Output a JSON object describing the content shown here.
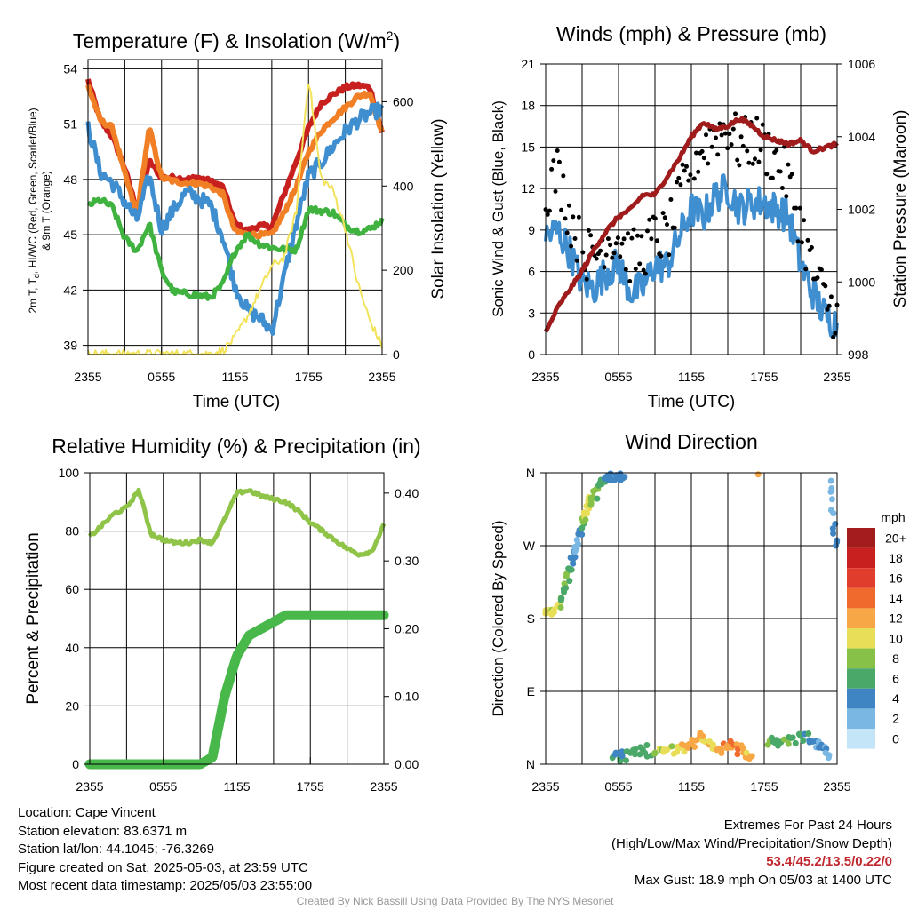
{
  "chart_data": [
    {
      "type": "line",
      "title_text": "Temperature (F) & Insolation (W/m",
      "title_sup": "2",
      "title_end": ")",
      "xlabel": "Time (UTC)",
      "ylabel_left_1": "2m T, T",
      "ylabel_left_sub": "d",
      "ylabel_left_2": ", HI/WC (Red, Green, Scarlet/Blue)",
      "ylabel_left_3": "& 9m T (Orange)",
      "ylabel_right": "Solar Insolation (Yellow)",
      "xticks": [
        "2355",
        "0555",
        "1155",
        "1755",
        "2355"
      ],
      "ylim_left": [
        38.5,
        54.5
      ],
      "yticks_left": [
        "54",
        "51",
        "48",
        "45",
        "42",
        "39"
      ],
      "ylim_right": [
        0,
        700
      ],
      "yticks_right": [
        "0",
        "200",
        "400",
        "600"
      ],
      "x_hours": [
        0,
        1,
        2,
        3,
        4,
        5,
        6,
        7,
        8,
        9,
        10,
        11,
        12,
        13,
        14,
        15,
        16,
        17,
        18,
        19,
        20,
        21,
        22,
        23,
        24
      ],
      "series": [
        {
          "color": "#c8201f",
          "axis": "left",
          "values": [
            53.4,
            51.2,
            50.3,
            48.6,
            46.3,
            49.0,
            48.1,
            48.1,
            48.0,
            48.1,
            47.9,
            47.6,
            45.6,
            45.2,
            45.5,
            45.4,
            47.2,
            49.0,
            50.8,
            52.1,
            52.6,
            53.0,
            53.1,
            53.0,
            50.5
          ]
        },
        {
          "color": "#f07f25",
          "axis": "left",
          "values": [
            53.1,
            51.2,
            50.8,
            48.3,
            46.1,
            50.8,
            48.1,
            47.9,
            47.8,
            47.8,
            47.6,
            47.2,
            45.2,
            45.0,
            45.0,
            45.0,
            46.2,
            47.6,
            49.5,
            50.6,
            51.3,
            51.9,
            52.5,
            52.7,
            50.5
          ]
        },
        {
          "color": "#3f8fd0",
          "axis": "left",
          "values": [
            50.9,
            48.4,
            47.8,
            46.8,
            45.8,
            48.2,
            45.3,
            46.4,
            47.3,
            47.0,
            46.6,
            44.9,
            42.2,
            40.9,
            40.5,
            39.8,
            42.7,
            45.6,
            48.2,
            48.9,
            49.8,
            50.6,
            51.2,
            51.6,
            51.8
          ]
        },
        {
          "color": "#3fb23f",
          "axis": "left",
          "values": [
            46.6,
            46.9,
            46.5,
            44.8,
            44.1,
            45.6,
            43.0,
            41.9,
            41.8,
            41.7,
            41.6,
            42.3,
            44.1,
            45.0,
            44.5,
            44.3,
            44.2,
            44.2,
            46.4,
            46.3,
            46.2,
            45.5,
            45.2,
            45.3,
            45.8
          ]
        },
        {
          "color": "#f2e35b",
          "axis": "right",
          "values": [
            2,
            2,
            2,
            2,
            2,
            2,
            2,
            2,
            2,
            2,
            2,
            10,
            40,
            90,
            150,
            210,
            230,
            340,
            660,
            420,
            390,
            300,
            170,
            80,
            20
          ]
        }
      ]
    },
    {
      "type": "scatter",
      "title": "Winds (mph) & Pressure (mb)",
      "xlabel": "Time (UTC)",
      "ylabel_left": "Sonic Wind & Gust (Blue, Black)",
      "ylabel_right": "Station Pressure (Maroon)",
      "xticks": [
        "2355",
        "0555",
        "1155",
        "1755",
        "2355"
      ],
      "ylim_left": [
        0,
        21
      ],
      "yticks_left": [
        "0",
        "3",
        "6",
        "9",
        "12",
        "15",
        "18",
        "21"
      ],
      "ylim_right": [
        998,
        1006
      ],
      "yticks_right": [
        "998",
        "1000",
        "1002",
        "1004",
        "1006"
      ],
      "x_hours": [
        0,
        1,
        2,
        3,
        4,
        5,
        6,
        7,
        8,
        9,
        10,
        11,
        12,
        13,
        14,
        15,
        16,
        17,
        18,
        19,
        20,
        21,
        22,
        23,
        24
      ],
      "series": [
        {
          "color": "#3f8fd0",
          "axis": "left",
          "values": [
            8.5,
            9.0,
            7.4,
            5.2,
            4.8,
            6.0,
            6.5,
            4.5,
            4.8,
            6.5,
            6.4,
            8.5,
            10.5,
            10.0,
            11.5,
            12.0,
            10.5,
            11.0,
            11.0,
            10.5,
            10.0,
            6.5,
            4.5,
            2.8,
            2.2
          ]
        },
        {
          "color": "#000000",
          "axis": "left",
          "values": [
            11.8,
            13.2,
            10.0,
            7.5,
            7.0,
            8.5,
            8.5,
            7.0,
            7.5,
            8.5,
            8.5,
            11.0,
            14.0,
            15.0,
            16.0,
            16.5,
            15.0,
            15.5,
            15.0,
            14.0,
            12.5,
            9.5,
            6.0,
            4.0,
            2.8
          ]
        },
        {
          "color": "#a01c1c",
          "axis": "right",
          "values": [
            998.6,
            999.3,
            999.8,
            1000.3,
            1000.9,
            1001.4,
            1001.8,
            1002.0,
            1002.4,
            1002.4,
            1002.9,
            1003.4,
            1004.0,
            1004.4,
            1004.2,
            1004.3,
            1004.5,
            1004.3,
            1004.0,
            1003.9,
            1003.8,
            1003.9,
            1003.6,
            1003.7,
            1003.8
          ]
        }
      ]
    },
    {
      "type": "line",
      "title": "Relative Humidity (%) & Precipitation (in)",
      "ylabel_left": "Percent & Precipitation",
      "xticks": [
        "2355",
        "0555",
        "1155",
        "1755",
        "2355"
      ],
      "ylim_left": [
        0,
        100
      ],
      "yticks_left": [
        "0",
        "20",
        "40",
        "60",
        "80",
        "100"
      ],
      "ylim_right": [
        0,
        0.43
      ],
      "yticks_right": [
        "0.00",
        "0.10",
        "0.20",
        "0.30",
        "0.40"
      ],
      "x_hours": [
        0,
        1,
        2,
        3,
        4,
        5,
        6,
        7,
        8,
        9,
        10,
        11,
        12,
        13,
        14,
        15,
        16,
        17,
        18,
        19,
        20,
        21,
        22,
        23,
        24
      ],
      "series": [
        {
          "color": "#8fc449",
          "axis": "left",
          "values": [
            78,
            82,
            86,
            88,
            94,
            79,
            77,
            76,
            76,
            77,
            76,
            84,
            93,
            94,
            92,
            91,
            90,
            87,
            83,
            80,
            77,
            74,
            72,
            73,
            82
          ]
        },
        {
          "color": "#49b84a",
          "axis": "right",
          "values": [
            0,
            0,
            0,
            0,
            0,
            0,
            0,
            0,
            0,
            0,
            0.01,
            0.1,
            0.16,
            0.19,
            0.2,
            0.21,
            0.22,
            0.22,
            0.22,
            0.22,
            0.22,
            0.22,
            0.22,
            0.22,
            0.22
          ]
        }
      ]
    },
    {
      "type": "scatter",
      "title": "Wind Direction",
      "ylabel_left": "Direction (Colored By Speed)",
      "xticks": [
        "2355",
        "0555",
        "1155",
        "1755",
        "2355"
      ],
      "ylim_left": [
        0,
        360
      ],
      "yticks_left": [
        "N",
        "E",
        "S",
        "W",
        "N"
      ],
      "colorbar_title": "mph",
      "colorbar_labels": [
        "20+",
        "18",
        "16",
        "14",
        "12",
        "10",
        "8",
        "6",
        "4",
        "2",
        "0"
      ],
      "colorbar_colors": [
        "#a31d1d",
        "#c8201f",
        "#e03d2c",
        "#ef6a2c",
        "#f7a745",
        "#e9de58",
        "#88c148",
        "#4aa868",
        "#3f85c4",
        "#7ab7e3",
        "#c4e4f7"
      ],
      "points": [
        {
          "x": 0.0,
          "y": 190,
          "s": 10
        },
        {
          "x": 0.5,
          "y": 185,
          "s": 9
        },
        {
          "x": 1.0,
          "y": 195,
          "s": 10
        },
        {
          "x": 1.3,
          "y": 205,
          "s": 6
        },
        {
          "x": 1.6,
          "y": 220,
          "s": 7
        },
        {
          "x": 2.0,
          "y": 240,
          "s": 6
        },
        {
          "x": 2.3,
          "y": 255,
          "s": 4
        },
        {
          "x": 2.6,
          "y": 270,
          "s": 2
        },
        {
          "x": 2.9,
          "y": 285,
          "s": 4
        },
        {
          "x": 3.2,
          "y": 305,
          "s": 9
        },
        {
          "x": 3.5,
          "y": 325,
          "s": 10
        },
        {
          "x": 3.9,
          "y": 330,
          "s": 8
        },
        {
          "x": 4.3,
          "y": 340,
          "s": 7
        },
        {
          "x": 4.8,
          "y": 350,
          "s": 5
        },
        {
          "x": 5.3,
          "y": 355,
          "s": 4
        },
        {
          "x": 5.8,
          "y": 357,
          "s": 4
        },
        {
          "x": 6.5,
          "y": 355,
          "s": 4
        },
        {
          "x": 5.5,
          "y": 8,
          "s": 5
        },
        {
          "x": 6.3,
          "y": 10,
          "s": 4
        },
        {
          "x": 7.0,
          "y": 14,
          "s": 6
        },
        {
          "x": 8.0,
          "y": 18,
          "s": 6
        },
        {
          "x": 9.0,
          "y": 14,
          "s": 8
        },
        {
          "x": 10.0,
          "y": 18,
          "s": 9
        },
        {
          "x": 11.0,
          "y": 20,
          "s": 10
        },
        {
          "x": 12.0,
          "y": 25,
          "s": 12
        },
        {
          "x": 12.7,
          "y": 35,
          "s": 12
        },
        {
          "x": 13.5,
          "y": 28,
          "s": 10
        },
        {
          "x": 14.5,
          "y": 18,
          "s": 12
        },
        {
          "x": 15.5,
          "y": 24,
          "s": 14
        },
        {
          "x": 16.3,
          "y": 14,
          "s": 12
        },
        {
          "x": 17.0,
          "y": 10,
          "s": 11
        },
        {
          "x": 17.5,
          "y": 358,
          "s": 12
        },
        {
          "x": 18.3,
          "y": 24,
          "s": 8
        },
        {
          "x": 19.0,
          "y": 30,
          "s": 6
        },
        {
          "x": 20.0,
          "y": 25,
          "s": 7
        },
        {
          "x": 21.0,
          "y": 35,
          "s": 6
        },
        {
          "x": 22.0,
          "y": 28,
          "s": 4
        },
        {
          "x": 22.8,
          "y": 20,
          "s": 3
        },
        {
          "x": 23.3,
          "y": 8,
          "s": 2
        },
        {
          "x": 23.5,
          "y": 350,
          "s": 2
        },
        {
          "x": 23.7,
          "y": 310,
          "s": 2
        },
        {
          "x": 23.9,
          "y": 270,
          "s": 4
        }
      ]
    }
  ],
  "footer": {
    "location": "Location: Cape Vincent",
    "elevation": "Station elevation: 83.6371 m",
    "latlon": "Station lat/lon: 44.1045; -76.3269",
    "created": "Figure created on Sat, 2025-05-03, at 23:59 UTC",
    "recent": "Most recent data timestamp: 2025/05/03 23:55:00",
    "extremes_title": "Extremes For Past 24 Hours",
    "extremes_sub": "(High/Low/Max Wind/Precipitation/Snow Depth)",
    "extremes_values": "53.4/45.2/13.5/0.22/0",
    "max_gust": "Max Gust: 18.9 mph On 05/03 at 1400 UTC",
    "credit": "Created By Nick Bassill Using Data Provided By The NYS Mesonet"
  }
}
